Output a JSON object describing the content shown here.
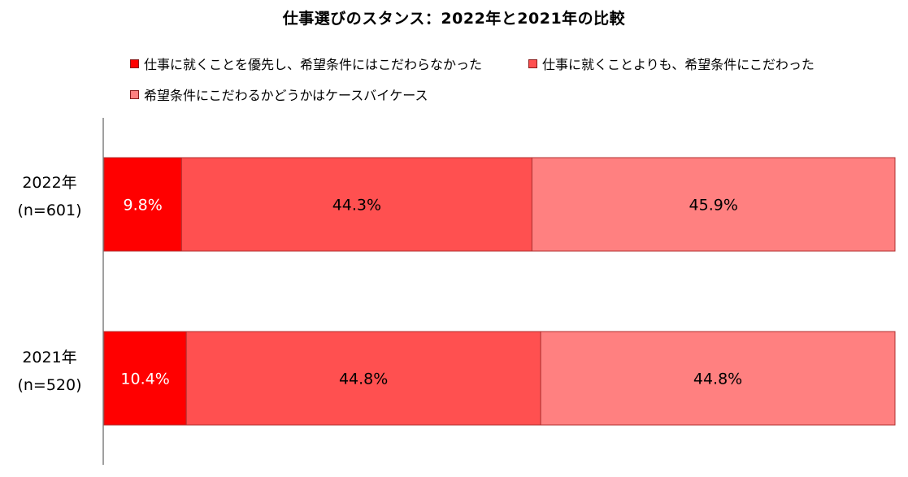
{
  "chart_data": {
    "type": "bar",
    "orientation": "horizontal",
    "stacked": true,
    "title": "仕事選びのスタンス：2022年と2021年の比較",
    "categories": [
      {
        "year": "2022年",
        "n": "(n=601)"
      },
      {
        "year": "2021年",
        "n": "(n=520)"
      }
    ],
    "series": [
      {
        "name": "仕事に就くことを優先し、希望条件にはこだわらなかった",
        "color": "#ff0000",
        "values": [
          9.8,
          10.4
        ],
        "labels": [
          "9.8%",
          "10.4%"
        ],
        "label_color": "#ffffff"
      },
      {
        "name": "仕事に就くことよりも、希望条件にこだわった",
        "color": "#ff5050",
        "values": [
          44.3,
          44.8
        ],
        "labels": [
          "44.3%",
          "44.8%"
        ],
        "label_color": "#000000"
      },
      {
        "name": "希望条件にこだわるかどうかはケースバイケース",
        "color": "#ff8080",
        "values": [
          45.9,
          44.8
        ],
        "labels": [
          "45.9%",
          "44.8%"
        ],
        "label_color": "#000000"
      }
    ],
    "xlim": [
      0,
      100
    ],
    "legend_position": "top",
    "grid": false
  }
}
